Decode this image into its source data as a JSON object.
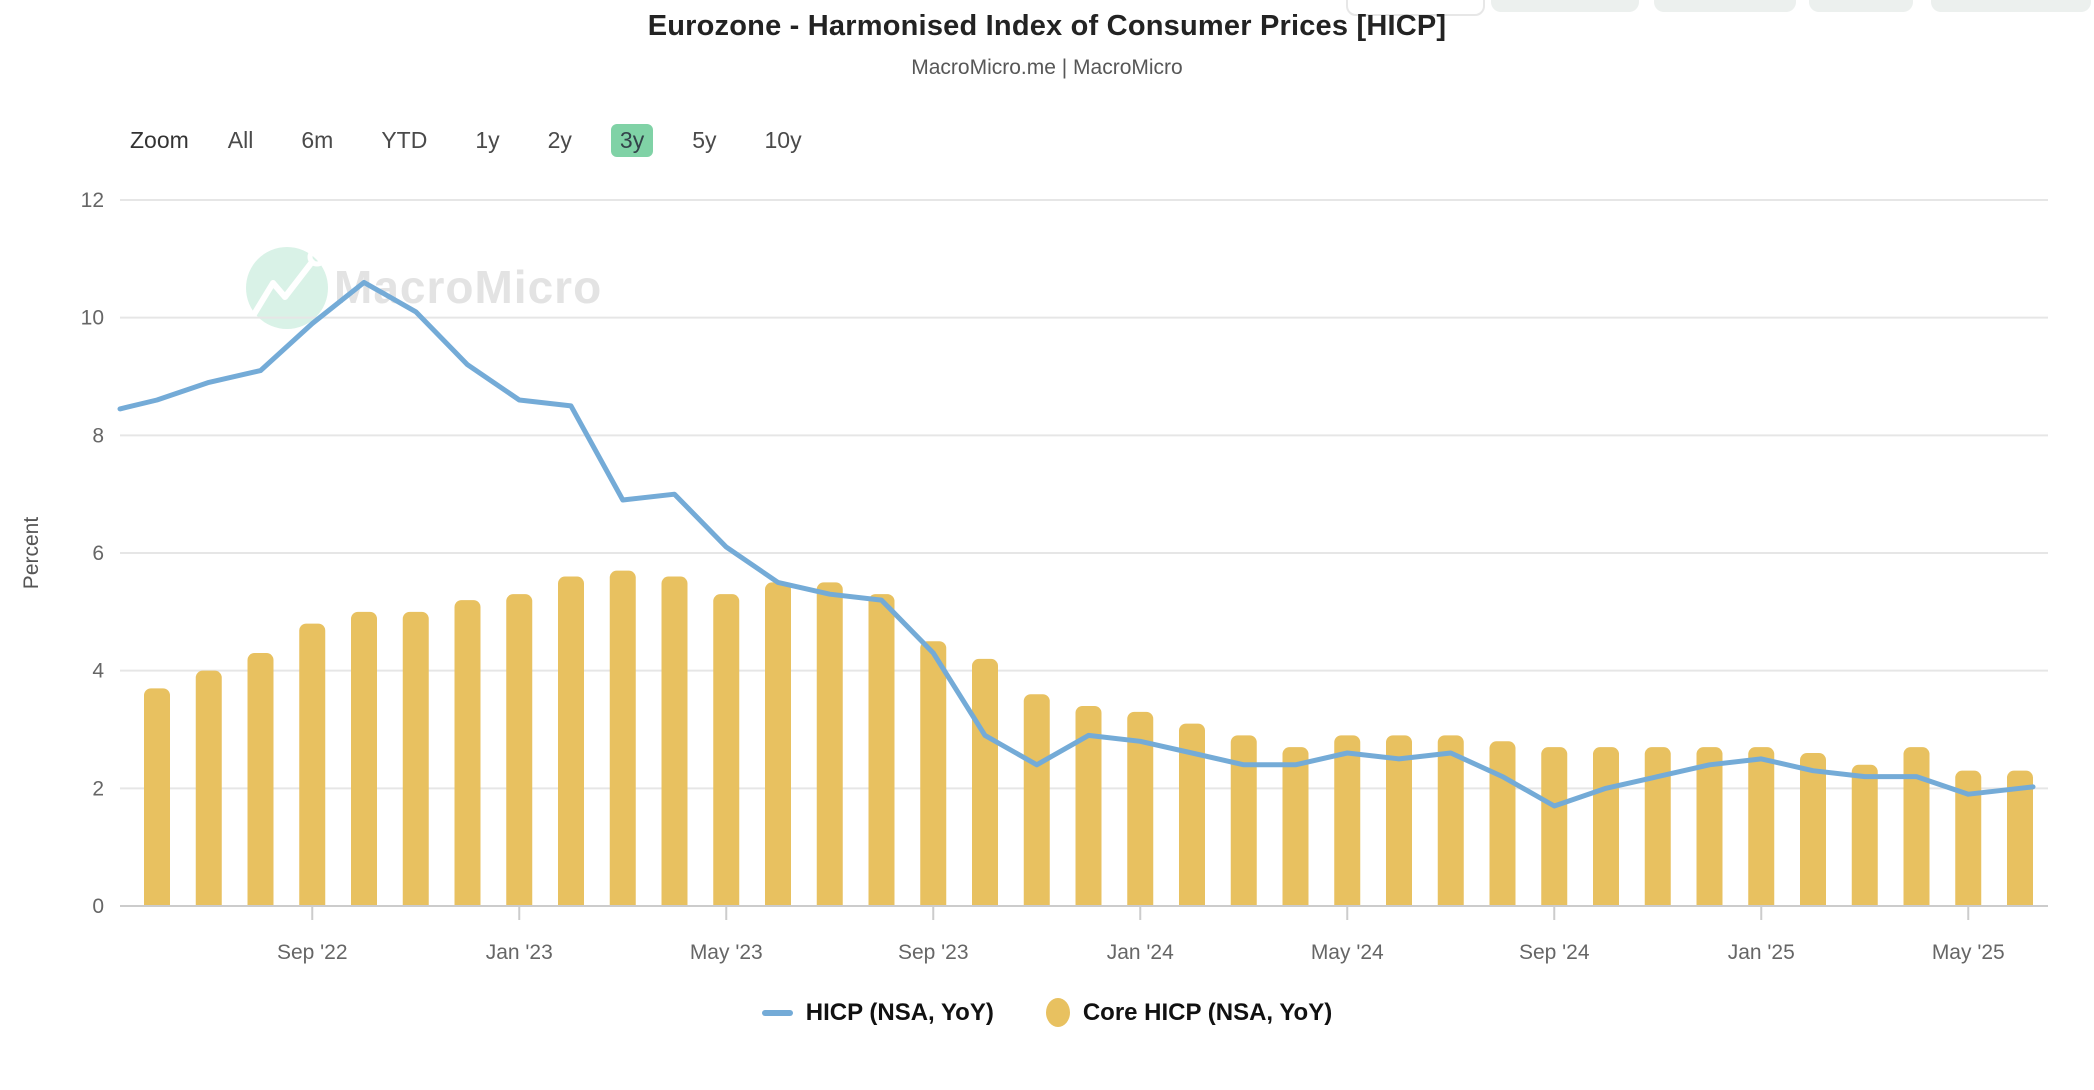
{
  "header": {
    "title": "Eurozone - Harmonised Index of Consumer Prices [HICP]",
    "subtitle": "MacroMicro.me | MacroMicro"
  },
  "toolbar": {
    "zoom_label": "Zoom",
    "ranges": [
      {
        "label": "All",
        "active": false
      },
      {
        "label": "6m",
        "active": false
      },
      {
        "label": "YTD",
        "active": false
      },
      {
        "label": "1y",
        "active": false
      },
      {
        "label": "2y",
        "active": false
      },
      {
        "label": "3y",
        "active": true
      },
      {
        "label": "5y",
        "active": false
      },
      {
        "label": "10y",
        "active": false
      }
    ],
    "active_bg": "#80d2a6"
  },
  "watermark": {
    "text": "MacroMicro",
    "text_color": "#e3e3e3",
    "badge_color": "#d9f2e7"
  },
  "legend": {
    "items": [
      {
        "label": "HICP (NSA, YoY)",
        "marker": "line",
        "color": "#74abd7"
      },
      {
        "label": "Core HICP (NSA, YoY)",
        "marker": "circle",
        "color": "#e8c160"
      }
    ]
  },
  "chart_data": {
    "type": "mixed",
    "title": "Eurozone - Harmonised Index of Consumer Prices [HICP]",
    "xlabel": "",
    "ylabel": "Percent",
    "ylim": [
      0,
      12
    ],
    "yticks": [
      0,
      2,
      4,
      6,
      8,
      10,
      12
    ],
    "grid": "horizontal",
    "legend_position": "bottom",
    "x": [
      "2022-06",
      "2022-07",
      "2022-08",
      "2022-09",
      "2022-10",
      "2022-11",
      "2022-12",
      "2023-01",
      "2023-02",
      "2023-03",
      "2023-04",
      "2023-05",
      "2023-06",
      "2023-07",
      "2023-08",
      "2023-09",
      "2023-10",
      "2023-11",
      "2023-12",
      "2024-01",
      "2024-02",
      "2024-03",
      "2024-04",
      "2024-05",
      "2024-06",
      "2024-07",
      "2024-08",
      "2024-09",
      "2024-10",
      "2024-11",
      "2024-12",
      "2025-01",
      "2025-02",
      "2025-03",
      "2025-04",
      "2025-05",
      "2025-06"
    ],
    "xtick_labels": [
      "Sep '22",
      "Jan '23",
      "May '23",
      "Sep '23",
      "Jan '24",
      "May '24",
      "Sep '24",
      "Jan '25",
      "May '25"
    ],
    "xtick_month_indices": [
      3,
      7,
      11,
      15,
      19,
      23,
      27,
      31,
      35
    ],
    "series": [
      {
        "name": "HICP (NSA, YoY)",
        "type": "line",
        "color": "#74abd7",
        "left_edge_entry_value": 8.45,
        "values": [
          8.6,
          8.9,
          9.1,
          9.9,
          10.6,
          10.1,
          9.2,
          8.6,
          8.5,
          6.9,
          7.0,
          6.1,
          5.5,
          5.3,
          5.2,
          4.3,
          2.9,
          2.4,
          2.9,
          2.8,
          2.6,
          2.4,
          2.4,
          2.6,
          2.5,
          2.6,
          2.2,
          1.7,
          2.0,
          2.2,
          2.4,
          2.5,
          2.3,
          2.2,
          2.2,
          1.9,
          2.0
        ]
      },
      {
        "name": "Core HICP (NSA, YoY)",
        "type": "bar",
        "color": "#e8c160",
        "values": [
          3.7,
          4.0,
          4.3,
          4.8,
          5.0,
          5.0,
          5.2,
          5.3,
          5.6,
          5.7,
          5.6,
          5.3,
          5.5,
          5.5,
          5.3,
          4.5,
          4.2,
          3.6,
          3.4,
          3.3,
          3.1,
          2.9,
          2.7,
          2.9,
          2.9,
          2.9,
          2.8,
          2.7,
          2.7,
          2.7,
          2.7,
          2.7,
          2.6,
          2.4,
          2.7,
          2.3,
          2.3
        ]
      }
    ],
    "axis_colors": {
      "grid": "#e6e6e6",
      "axis": "#cccccc",
      "tick_text": "#666666"
    }
  }
}
